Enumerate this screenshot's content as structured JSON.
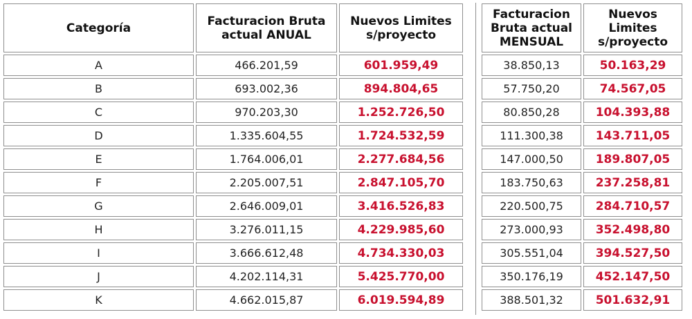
{
  "annual": {
    "headers": {
      "category": [
        "Categoría"
      ],
      "gross": [
        "Facturacion Bruta",
        "actual ANUAL"
      ],
      "limits": [
        "Nuevos Limites",
        "s/proyecto"
      ]
    },
    "rows": [
      {
        "category": "A",
        "gross": "466.201,59",
        "limit": "601.959,49"
      },
      {
        "category": "B",
        "gross": "693.002,36",
        "limit": "894.804,65"
      },
      {
        "category": "C",
        "gross": "970.203,30",
        "limit": "1.252.726,50"
      },
      {
        "category": "D",
        "gross": "1.335.604,55",
        "limit": "1.724.532,59"
      },
      {
        "category": "E",
        "gross": "1.764.006,01",
        "limit": "2.277.684,56"
      },
      {
        "category": "F",
        "gross": "2.205.007,51",
        "limit": "2.847.105,70"
      },
      {
        "category": "G",
        "gross": "2.646.009,01",
        "limit": "3.416.526,83"
      },
      {
        "category": "H",
        "gross": "3.276.011,15",
        "limit": "4.229.985,60"
      },
      {
        "category": "I",
        "gross": "3.666.612,48",
        "limit": "4.734.330,03"
      },
      {
        "category": "J",
        "gross": "4.202.114,31",
        "limit": "5.425.770,00"
      },
      {
        "category": "K",
        "gross": "4.662.015,87",
        "limit": "6.019.594,89"
      }
    ]
  },
  "monthly": {
    "headers": {
      "gross": [
        "Facturacion",
        "Bruta actual",
        "MENSUAL"
      ],
      "limits": [
        "Nuevos",
        "Limites",
        "s/proyecto"
      ]
    },
    "rows": [
      {
        "gross": "38.850,13",
        "limit": "50.163,29"
      },
      {
        "gross": "57.750,20",
        "limit": "74.567,05"
      },
      {
        "gross": "80.850,28",
        "limit": "104.393,88"
      },
      {
        "gross": "111.300,38",
        "limit": "143.711,05"
      },
      {
        "gross": "147.000,50",
        "limit": "189.807,05"
      },
      {
        "gross": "183.750,63",
        "limit": "237.258,81"
      },
      {
        "gross": "220.500,75",
        "limit": "284.710,57"
      },
      {
        "gross": "273.000,93",
        "limit": "352.498,80"
      },
      {
        "gross": "305.551,04",
        "limit": "394.527,50"
      },
      {
        "gross": "350.176,19",
        "limit": "452.147,50"
      },
      {
        "gross": "388.501,32",
        "limit": "501.632,91"
      }
    ]
  },
  "colors": {
    "highlight_text": "#c8102e",
    "border": "#8e8e8e"
  }
}
